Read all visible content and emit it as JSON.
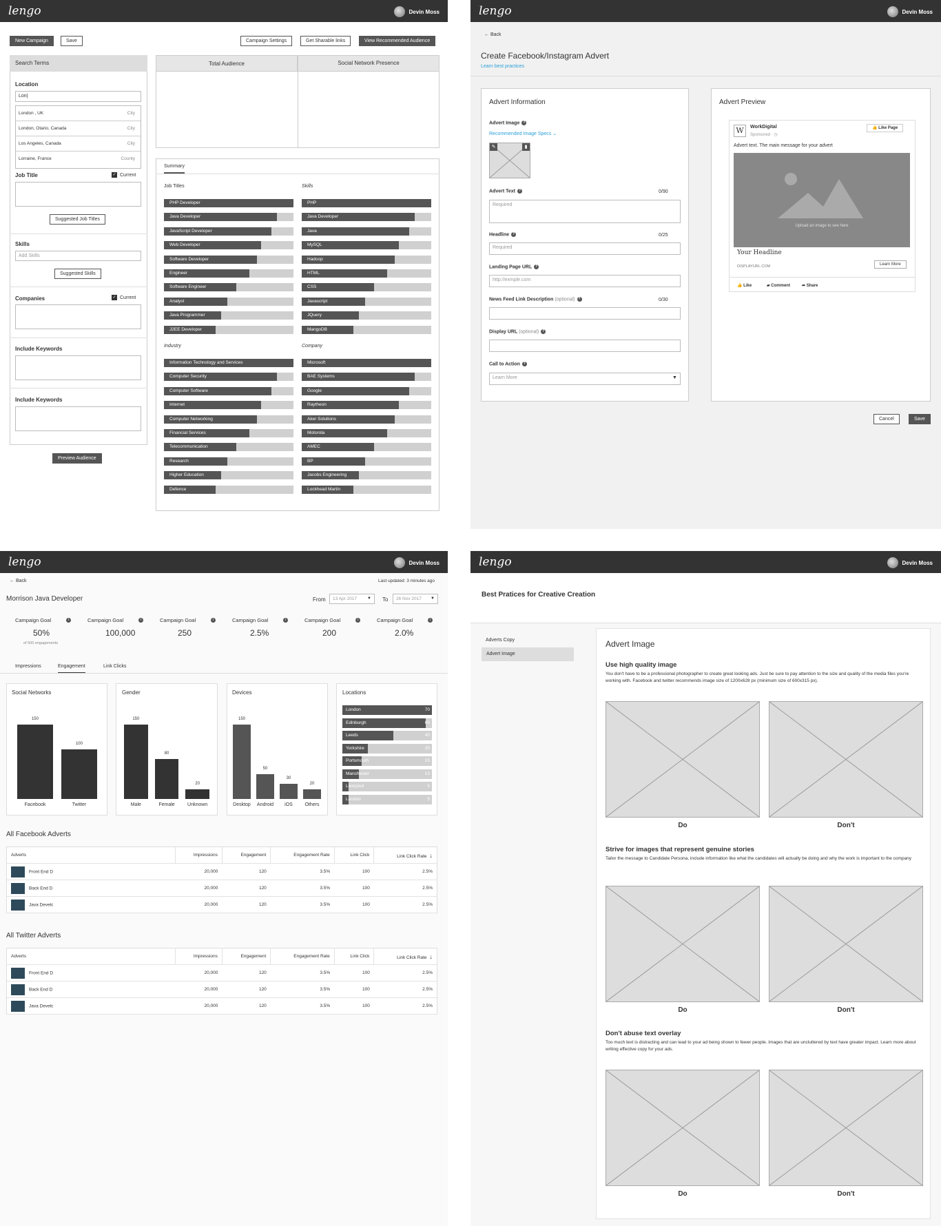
{
  "app": {
    "logo": "lengo",
    "user_name": "Devin Moss"
  },
  "p1": {
    "buttons": {
      "new_campaign": "New Campaign",
      "save": "Save",
      "campaign_settings": "Campaign Settings",
      "sharable_links": "Get Sharable links",
      "view_audience": "View Recommended Audience",
      "suggested_job_titles": "Suggested Job Titles",
      "suggested_skills": "Suggested Skills",
      "preview": "Preview Audience"
    },
    "search_terms": "Search Terms",
    "location_label": "Location",
    "location_value": "Lon|",
    "suggestions": [
      {
        "name": "London , UK",
        "type": "City"
      },
      {
        "name": "London, Otario, Canada",
        "type": "City"
      },
      {
        "name": "Los Angeles, Canada",
        "type": "City"
      },
      {
        "name": "Lorraine, France",
        "type": "County"
      }
    ],
    "job_title_label": "Job Title",
    "current": "Current",
    "skills_label": "Skills",
    "skills_placeholder": "Add Skills",
    "companies_label": "Companies",
    "keywords1": "Include Keywords",
    "keywords2": "Include Keywords",
    "total_audience": "Total Audience",
    "social_presence": "Social Network Presence",
    "summary_tab": "Summary",
    "job_titles": {
      "title": "Job Titles",
      "items": [
        {
          "label": "PHP Developer",
          "value": 100
        },
        {
          "label": "Java Developer",
          "value": 87
        },
        {
          "label": "JavaScript Developer",
          "value": 83
        },
        {
          "label": "Web Developer",
          "value": 75
        },
        {
          "label": "Software Developer",
          "value": 72
        },
        {
          "label": "Engineer",
          "value": 66
        },
        {
          "label": "Software Engineer",
          "value": 56
        },
        {
          "label": "Analyst",
          "value": 49
        },
        {
          "label": "Java Programmer",
          "value": 44
        },
        {
          "label": "J2EE Developer",
          "value": 40
        }
      ]
    },
    "skills": {
      "title": "Skills",
      "items": [
        {
          "label": "PHP",
          "value": 100
        },
        {
          "label": "Java Developer",
          "value": 87
        },
        {
          "label": "Java",
          "value": 83
        },
        {
          "label": "MySQL",
          "value": 75
        },
        {
          "label": "Hadoop",
          "value": 72
        },
        {
          "label": "HTML",
          "value": 66
        },
        {
          "label": "CSS",
          "value": 56
        },
        {
          "label": "Javascript",
          "value": 49
        },
        {
          "label": "JQuery",
          "value": 44
        },
        {
          "label": "MangoDB",
          "value": 40
        }
      ]
    },
    "industry": {
      "title": "Industry",
      "items": [
        {
          "label": "Information Technology and Services",
          "value": 100
        },
        {
          "label": "Computer Security",
          "value": 87
        },
        {
          "label": "Computer Software",
          "value": 83
        },
        {
          "label": "Internet",
          "value": 75
        },
        {
          "label": "Computer Networking",
          "value": 72
        },
        {
          "label": "Financial Services",
          "value": 66
        },
        {
          "label": "Telecommunication",
          "value": 56
        },
        {
          "label": "Research",
          "value": 49
        },
        {
          "label": "Higher Education",
          "value": 44
        },
        {
          "label": "Defence",
          "value": 40
        }
      ]
    },
    "company": {
      "title": "Company",
      "items": [
        {
          "label": "Microsoft",
          "value": 100
        },
        {
          "label": "BAE Systems",
          "value": 87
        },
        {
          "label": "Google",
          "value": 83
        },
        {
          "label": "Raytheon",
          "value": 75
        },
        {
          "label": "Aker Solutions",
          "value": 72
        },
        {
          "label": "Motorola",
          "value": 66
        },
        {
          "label": "AMEC",
          "value": 56
        },
        {
          "label": "BP",
          "value": 49
        },
        {
          "label": "Jacobs Engineering",
          "value": 44
        },
        {
          "label": "Lockhead Martin",
          "value": 40
        }
      ]
    }
  },
  "p2": {
    "back": "Back",
    "title": "Create Facebook/Instagram Advert",
    "learn": "Learn best practices",
    "info_title": "Advert Information",
    "image_label": "Advert Image",
    "specs": "Recommended Image Specs",
    "text_label": "Advert Text",
    "text_count": "0/90",
    "text_ph": "Required",
    "headline_label": "Headline",
    "headline_count": "0/25",
    "headline_ph": "Required",
    "url_label": "Landing Page URL",
    "url_ph": "http://exmple.com",
    "news_label": "News Feed Link Description",
    "news_opt": "(optional)",
    "news_count": "0/30",
    "display_label": "Display URL",
    "display_opt": "(optional)",
    "cta_label": "Call to Action",
    "cta_value": "Learn More",
    "preview_title": "Advert Preview",
    "company": "WorkDigital",
    "sponsored": "Sponsored · ◷",
    "like_page": "Like Page",
    "advert_text": "Advert text. The main message for your advert",
    "upload": "Upload an image to see here",
    "your_headline": "Your Headline",
    "display_url": "DISPLAYURL.COM",
    "learn_more": "Learn More",
    "like": "Like",
    "comment": "Comment",
    "share": "Share",
    "cancel": "Cancel",
    "save": "Save"
  },
  "p3": {
    "back": "Back",
    "updated": "Last updated: 3 minutes ago",
    "title": "Morrison Java Developer",
    "from": "From",
    "from_date": "13 Apr 2017",
    "to": "To",
    "to_date": "26 Nov 2017",
    "goals": [
      {
        "label": "Campaign Goal",
        "value": "50%",
        "sub": "of 500 engagements"
      },
      {
        "label": "Campaign Goal",
        "value": "100,000",
        "sub": ""
      },
      {
        "label": "Campaign Goal",
        "value": "250",
        "sub": ""
      },
      {
        "label": "Campaign Goal",
        "value": "2.5%",
        "sub": ""
      },
      {
        "label": "Campaign Goal",
        "value": "200",
        "sub": ""
      },
      {
        "label": "Campaign Goal",
        "value": "2.0%",
        "sub": ""
      }
    ],
    "tabs": [
      "Impressions",
      "Engagement",
      "Link Clicks"
    ],
    "social": {
      "title": "Social Networks",
      "bars": [
        {
          "label": "Facebook",
          "value": 150
        },
        {
          "label": "Twitter",
          "value": 100
        }
      ]
    },
    "gender": {
      "title": "Gender",
      "bars": [
        {
          "label": "Male",
          "value": 150
        },
        {
          "label": "Female",
          "value": 80
        },
        {
          "label": "Unknown",
          "value": 20
        }
      ]
    },
    "devices": {
      "title": "Devices",
      "bars": [
        {
          "label": "Desktop",
          "value": 150
        },
        {
          "label": "Android",
          "value": 50
        },
        {
          "label": "iOS",
          "value": 30
        },
        {
          "label": "Others",
          "value": 20
        }
      ]
    },
    "locations": {
      "title": "Locations",
      "items": [
        {
          "label": "London",
          "value": 70
        },
        {
          "label": "Edinburgh",
          "value": 65
        },
        {
          "label": "Leeds",
          "value": 40
        },
        {
          "label": "Yorkshire",
          "value": 20
        },
        {
          "label": "Portsmouth",
          "value": 15
        },
        {
          "label": "Manchester",
          "value": 13
        },
        {
          "label": "Liverpool",
          "value": 5
        },
        {
          "label": "London",
          "value": 5
        }
      ]
    },
    "fb_title": "All Facebook Adverts",
    "tw_title": "All Twitter Adverts",
    "columns": [
      "Adverts",
      "Impressions",
      "Engagement",
      "Engagement Rate",
      "Link Click",
      "Link Click Rate"
    ],
    "fb_rows": [
      [
        "Front End D",
        "20,000",
        "120",
        "3.5%",
        "100",
        "2.5%"
      ],
      [
        "Back End D",
        "20,000",
        "120",
        "3.5%",
        "100",
        "2.5%"
      ],
      [
        "Java Develc",
        "20,000",
        "120",
        "3.5%",
        "100",
        "2.5%"
      ]
    ],
    "tw_rows": [
      [
        "Front End D",
        "20,000",
        "120",
        "3.5%",
        "100",
        "2.5%"
      ],
      [
        "Back End D",
        "20,000",
        "120",
        "3.5%",
        "100",
        "2.5%"
      ],
      [
        "Java Develc",
        "20,000",
        "120",
        "3.5%",
        "100",
        "2.5%"
      ]
    ]
  },
  "p4": {
    "title": "Best Pratices for Creative Creation",
    "nav": [
      "Adverts Copy",
      "Advert Image"
    ],
    "section_title": "Advert Image",
    "sections": [
      {
        "heading": "Use high quality image",
        "text": "You don't have to be a professional photographer to create great looking ads. Just be sure to pay attention to the size and quality of the media files you're working with. Facebook and twitter recommends image size of 1200x628 px (minimum size of 600x315 px).",
        "do": "Do",
        "dont": "Don't"
      },
      {
        "heading": "Strive for images that represent genuine stories",
        "text": "Tailor the message to Candidate Persona, include information like what the candidates will actually be doing and why the work is important to the company",
        "do": "Do",
        "dont": "Don't"
      },
      {
        "heading": "Don't abuse text overlay",
        "text": "Too much text is distracting and can lead to your ad being shown to fewer people. Images that are uncluttered by text have greater impact. Learn more about writing effective copy for your ads.",
        "do": "Do",
        "dont": "Don't"
      }
    ]
  }
}
